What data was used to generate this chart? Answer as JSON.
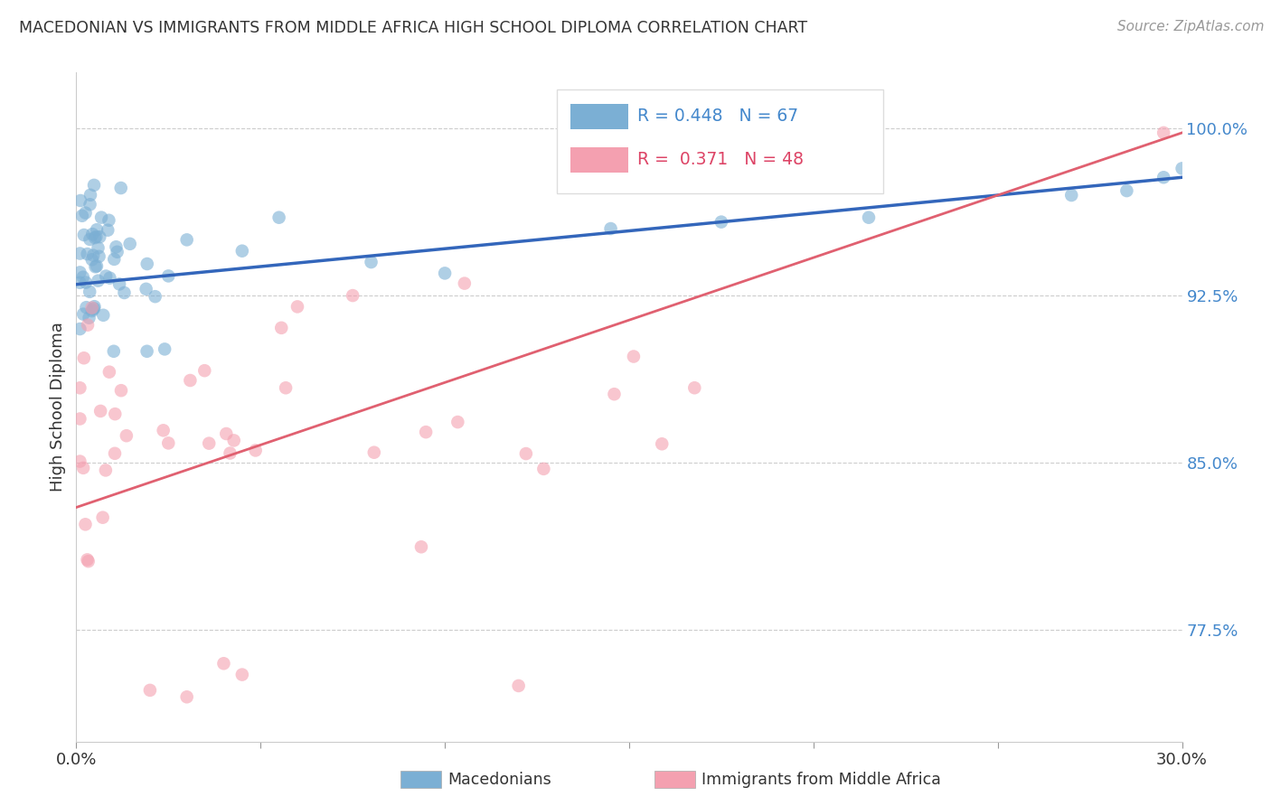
{
  "title": "MACEDONIAN VS IMMIGRANTS FROM MIDDLE AFRICA HIGH SCHOOL DIPLOMA CORRELATION CHART",
  "source": "Source: ZipAtlas.com",
  "ylabel": "High School Diploma",
  "xlim": [
    0.0,
    0.3
  ],
  "ylim": [
    0.725,
    1.025
  ],
  "yticks": [
    0.775,
    0.85,
    0.925,
    1.0
  ],
  "ytick_labels": [
    "77.5%",
    "85.0%",
    "92.5%",
    "100.0%"
  ],
  "R_blue": 0.448,
  "N_blue": 67,
  "R_pink": 0.371,
  "N_pink": 48,
  "blue_color": "#7BAFD4",
  "pink_color": "#F4A0B0",
  "trend_blue": "#3366BB",
  "trend_pink": "#E06070",
  "legend_label_blue": "Macedonians",
  "legend_label_pink": "Immigrants from Middle Africa"
}
